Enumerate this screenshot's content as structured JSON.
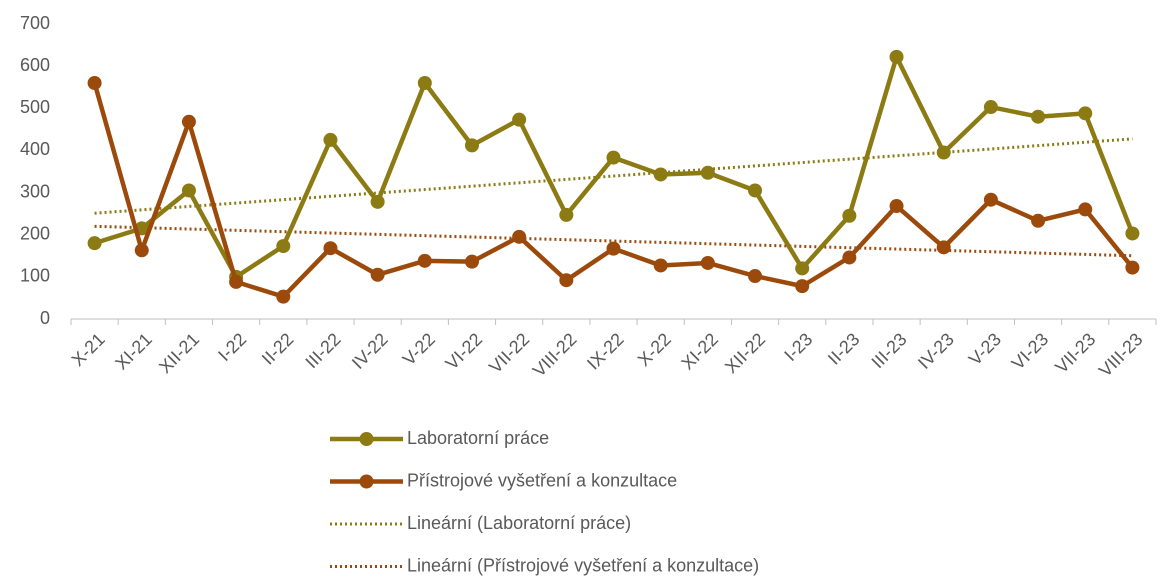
{
  "chart_data": {
    "type": "line",
    "categories": [
      "X-21",
      "XI-21",
      "XII-21",
      "I-22",
      "II-22",
      "III-22",
      "IV-22",
      "V-22",
      "VI-22",
      "VII-22",
      "VIII-22",
      "IX-22",
      "X-22",
      "XI-22",
      "XII-22",
      "I-23",
      "II-23",
      "III-23",
      "IV-23",
      "V-23",
      "VI-23",
      "VII-23",
      "VIII-23"
    ],
    "series": [
      {
        "name": "Laboratorní práce",
        "color": "#8c7a12",
        "values": [
          180,
          215,
          305,
          100,
          173,
          425,
          278,
          560,
          412,
          473,
          247,
          383,
          343,
          347,
          305,
          120,
          245,
          622,
          395,
          503,
          480,
          488,
          203
        ],
        "trendline": {
          "name": "Lineární (Laboratorní práce)",
          "type": "linear",
          "style": "dotted"
        }
      },
      {
        "name": "Přístrojové vyšetření a konzultace",
        "color": "#9c4a0c",
        "values": [
          560,
          163,
          468,
          88,
          53,
          168,
          105,
          138,
          136,
          195,
          92,
          167,
          127,
          133,
          102,
          78,
          146,
          268,
          170,
          283,
          233,
          260,
          122
        ],
        "trendline": {
          "name": "Lineární (Přístrojové vyšetření a konzultace)",
          "type": "linear",
          "style": "dotted"
        }
      }
    ],
    "ylim": [
      0,
      700
    ],
    "yticks": [
      0,
      100,
      200,
      300,
      400,
      500,
      600,
      700
    ],
    "grid": false,
    "legend": "bottom"
  }
}
